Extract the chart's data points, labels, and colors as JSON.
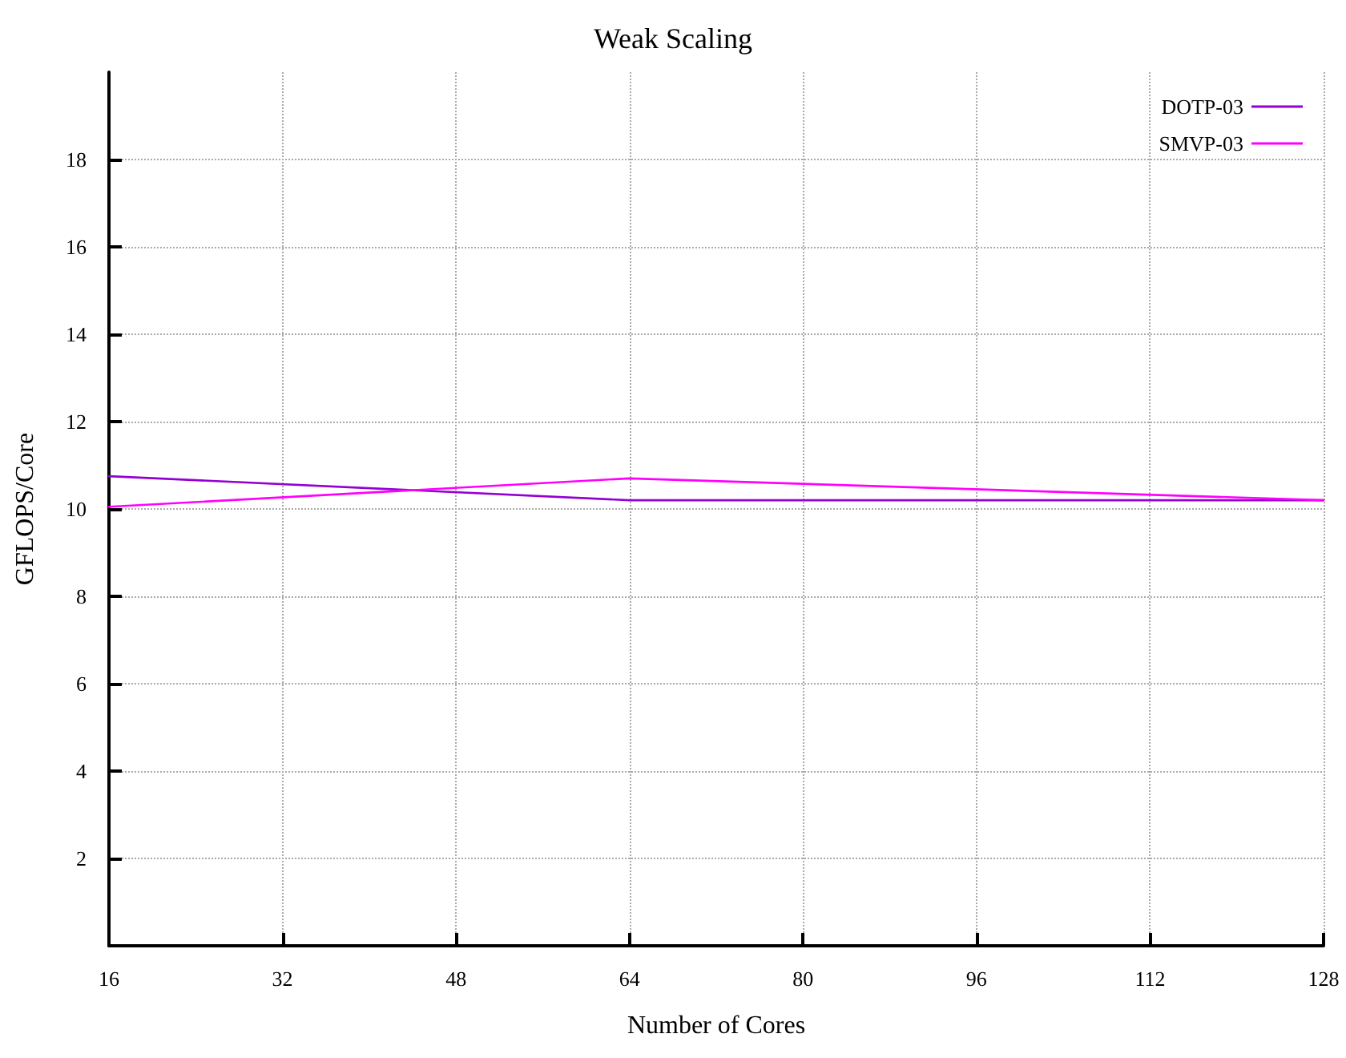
{
  "chart_data": {
    "type": "line",
    "title": "Weak Scaling",
    "xlabel": "Number of Cores",
    "ylabel": "GFLOPS/Core",
    "xlim": [
      16,
      128
    ],
    "xticks": [
      16,
      32,
      48,
      64,
      80,
      96,
      112,
      128
    ],
    "ylim": [
      0,
      20
    ],
    "yticks": [
      2,
      4,
      6,
      8,
      10,
      12,
      14,
      16,
      18
    ],
    "series": [
      {
        "name": "DOTP-03",
        "color": "#9400d3",
        "x": [
          16,
          64,
          128
        ],
        "values": [
          10.75,
          10.2,
          10.2
        ]
      },
      {
        "name": "SMVP-03",
        "color": "#ff00ff",
        "x": [
          16,
          64,
          128
        ],
        "values": [
          10.05,
          10.7,
          10.2
        ]
      }
    ],
    "grid": true,
    "legend": "top right",
    "marker": "none",
    "line_style": "solid"
  }
}
